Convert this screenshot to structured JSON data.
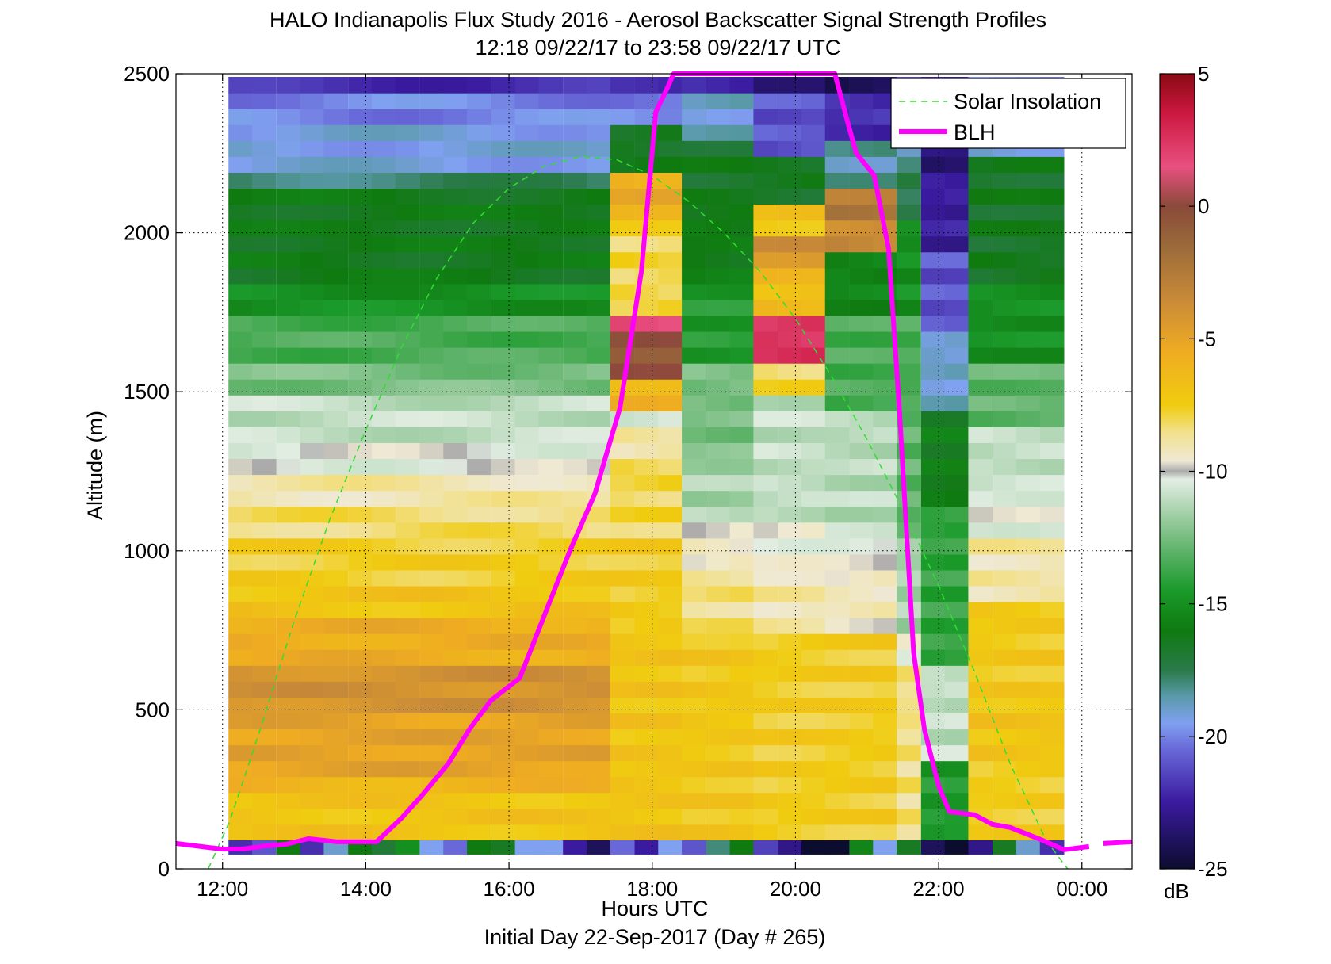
{
  "chart_data": {
    "type": "heatmap",
    "title": "HALO Indianapolis Flux Study 2016 - Aerosol Backscatter Signal Strength Profiles",
    "subtitle": "12:18 09/22/17 to 23:58 09/22/17  UTC",
    "xlabel": "Hours UTC",
    "xlabel2": "Initial Day 22-Sep-2017 (Day # 265)",
    "ylabel": "Altitude (m)",
    "colorbar_label": "dB",
    "xlim": [
      11.35,
      24.7
    ],
    "ylim": [
      0,
      2500
    ],
    "clim": [
      -25,
      5
    ],
    "grid": true,
    "grid_style": "dotted",
    "legend_position": "top-right",
    "x_ticks": [
      {
        "value": 12,
        "label": "12:00"
      },
      {
        "value": 14,
        "label": "14:00"
      },
      {
        "value": 16,
        "label": "16:00"
      },
      {
        "value": 18,
        "label": "18:00"
      },
      {
        "value": 20,
        "label": "20:00"
      },
      {
        "value": 22,
        "label": "22:00"
      },
      {
        "value": 24,
        "label": "00:00"
      }
    ],
    "y_ticks": [
      {
        "value": 0,
        "label": "0"
      },
      {
        "value": 500,
        "label": "500"
      },
      {
        "value": 1000,
        "label": "1000"
      },
      {
        "value": 1500,
        "label": "1500"
      },
      {
        "value": 2000,
        "label": "2000"
      },
      {
        "value": 2500,
        "label": "2500"
      }
    ],
    "colorbar_ticks": [
      {
        "value": 5,
        "label": "5"
      },
      {
        "value": 0,
        "label": "0"
      },
      {
        "value": -5,
        "label": "-5"
      },
      {
        "value": -10,
        "label": "-10"
      },
      {
        "value": -15,
        "label": "-15"
      },
      {
        "value": -20,
        "label": "-20"
      },
      {
        "value": -25,
        "label": "-25"
      }
    ],
    "colormap": [
      {
        "v": -25,
        "c": "#0c0c2e"
      },
      {
        "v": -22.5,
        "c": "#3a1a9e"
      },
      {
        "v": -20.5,
        "c": "#6868d8"
      },
      {
        "v": -19.5,
        "c": "#80a0f0"
      },
      {
        "v": -18.5,
        "c": "#5a9aaa"
      },
      {
        "v": -17.5,
        "c": "#2a7a4a"
      },
      {
        "v": -16,
        "c": "#0f7a0f"
      },
      {
        "v": -14.5,
        "c": "#1a9a2a"
      },
      {
        "v": -13,
        "c": "#5fb36a"
      },
      {
        "v": -11.5,
        "c": "#a8d2ac"
      },
      {
        "v": -10.3,
        "c": "#e4eee4"
      },
      {
        "v": -10,
        "c": "#aaaaaa"
      },
      {
        "v": -9.6,
        "c": "#efe9d4"
      },
      {
        "v": -8.5,
        "c": "#f2e08a"
      },
      {
        "v": -7.5,
        "c": "#f0cc10"
      },
      {
        "v": -5.5,
        "c": "#efac22"
      },
      {
        "v": -3.5,
        "c": "#c88a38"
      },
      {
        "v": -1.5,
        "c": "#9a6a3a"
      },
      {
        "v": 0,
        "c": "#8a4a3a"
      },
      {
        "v": 1.5,
        "c": "#e85080"
      },
      {
        "v": 3.5,
        "c": "#cc1840"
      },
      {
        "v": 5,
        "c": "#8a0a14"
      }
    ],
    "heatmap_x": [
      12.25,
      12.58,
      12.92,
      13.25,
      13.58,
      13.92,
      14.25,
      14.58,
      14.92,
      15.25,
      15.58,
      15.92,
      16.25,
      16.58,
      16.92,
      17.25,
      17.58,
      17.92,
      18.25,
      18.58,
      18.92,
      19.25,
      19.58,
      19.92,
      20.25,
      20.58,
      20.92,
      21.25,
      21.58,
      21.92,
      22.25,
      22.58,
      22.92,
      23.25,
      23.58
    ],
    "heatmap_x_step": 0.3333,
    "heatmap_y_min": 90,
    "heatmap_y_step": 50,
    "heatmap_segments": [
      {
        "x_from": 12.25,
        "x_to": 17.25,
        "bands": [
          [
            90,
            -7.0
          ],
          [
            200,
            -6.0
          ],
          [
            250,
            -5.0
          ],
          [
            450,
            -4.0
          ],
          [
            600,
            -5.6
          ],
          [
            750,
            -7.0
          ],
          [
            880,
            -7.6
          ],
          [
            1030,
            -8.3
          ],
          [
            1130,
            -9.0
          ],
          [
            1230,
            -10.2
          ],
          [
            1340,
            -11.0
          ],
          [
            1460,
            -12.5
          ],
          [
            1560,
            -13.5
          ],
          [
            1700,
            -15.0
          ],
          [
            1840,
            -16.2
          ],
          [
            2100,
            -17.8
          ],
          [
            2170,
            -19.3
          ],
          [
            2320,
            -20.0
          ],
          [
            2420,
            -22.0
          ]
        ]
      },
      {
        "x_from": 17.58,
        "x_to": 18.25,
        "bands": [
          [
            90,
            -7.0
          ],
          [
            700,
            -7.5
          ],
          [
            1000,
            -8.0
          ],
          [
            1250,
            -9.0
          ],
          [
            1350,
            -10.3
          ],
          [
            1420,
            -6.0
          ],
          [
            1500,
            -0.5
          ],
          [
            1650,
            2.0
          ],
          [
            1720,
            -8.0
          ],
          [
            2000,
            -5.5
          ],
          [
            2150,
            -16.5
          ],
          [
            2300,
            -20.0
          ],
          [
            2420,
            -22.5
          ]
        ]
      },
      {
        "x_from": 18.58,
        "x_to": 19.25,
        "bands": [
          [
            90,
            -7.2
          ],
          [
            700,
            -8.5
          ],
          [
            900,
            -9.5
          ],
          [
            1050,
            -11.5
          ],
          [
            1250,
            -12.5
          ],
          [
            1550,
            -14.5
          ],
          [
            1800,
            -16.0
          ],
          [
            2050,
            -16.5
          ],
          [
            2250,
            -19.0
          ],
          [
            2420,
            -22.0
          ]
        ]
      },
      {
        "x_from": 19.58,
        "x_to": 20.25,
        "bands": [
          [
            90,
            -7.5
          ],
          [
            700,
            -9.0
          ],
          [
            900,
            -10.0
          ],
          [
            1050,
            -11.0
          ],
          [
            1450,
            -8.0
          ],
          [
            1550,
            2.5
          ],
          [
            1700,
            -6.5
          ],
          [
            1850,
            -4.0
          ],
          [
            1950,
            -7.0
          ],
          [
            2050,
            -16.5
          ],
          [
            2200,
            -21.0
          ],
          [
            2400,
            -23.0
          ]
        ]
      },
      {
        "x_from": 20.58,
        "x_to": 21.25,
        "bands": [
          [
            90,
            -7.5
          ],
          [
            700,
            -9.3
          ],
          [
            900,
            -10.0
          ],
          [
            1000,
            -11.2
          ],
          [
            1400,
            -13.5
          ],
          [
            1700,
            -15.5
          ],
          [
            1900,
            -3.5
          ],
          [
            2000,
            -2.5
          ],
          [
            2100,
            -18.5
          ],
          [
            2250,
            -22.0
          ],
          [
            2400,
            -24.0
          ]
        ]
      },
      {
        "x_from": 21.58,
        "x_to": 21.58,
        "bands": [
          [
            90,
            -8.5
          ],
          [
            600,
            -10.0
          ],
          [
            700,
            -11.5
          ],
          [
            1000,
            -13.0
          ],
          [
            1400,
            -13.5
          ],
          [
            1700,
            -15.0
          ],
          [
            2000,
            -17.5
          ],
          [
            2200,
            -19.5
          ],
          [
            2420,
            -22.0
          ]
        ]
      },
      {
        "x_from": 21.92,
        "x_to": 22.25,
        "bands": [
          [
            90,
            -14.5
          ],
          [
            300,
            -11.0
          ],
          [
            600,
            -14.0
          ],
          [
            1100,
            -16.0
          ],
          [
            1400,
            -19.0
          ],
          [
            1650,
            -21.0
          ],
          [
            1900,
            -22.5
          ],
          [
            2150,
            -23.5
          ]
        ]
      },
      {
        "x_from": 22.58,
        "x_to": 23.58,
        "bands": [
          [
            90,
            -7.5
          ],
          [
            300,
            -7.0
          ],
          [
            500,
            -7.3
          ],
          [
            800,
            -9.0
          ],
          [
            1000,
            -10.2
          ],
          [
            1150,
            -11.0
          ],
          [
            1350,
            -13.0
          ],
          [
            1550,
            -15.0
          ],
          [
            1800,
            -16.5
          ],
          [
            2050,
            -16.5
          ],
          [
            2200,
            -19.0
          ],
          [
            2350,
            -20.5
          ]
        ]
      }
    ],
    "bottom_row_values": [
      -22,
      -21,
      -16,
      -22,
      -19,
      -16,
      -17,
      -15,
      -19.5,
      -20.5,
      -16,
      -16.5,
      -19.5,
      -19.5,
      -22.5,
      -24,
      -20.5,
      -22.5,
      -19.5,
      -21,
      -18,
      -16,
      -21.5,
      -23,
      -25,
      -25,
      -15.5,
      -19.5,
      -16.5,
      -24,
      -25,
      -23,
      -16.5,
      -19,
      -22
    ],
    "series": [
      {
        "name": "Solar Insolation",
        "style": "dashed",
        "color": "#33dd33",
        "x": [
          11.8,
          12.1,
          12.5,
          13.0,
          13.5,
          14.0,
          14.5,
          15.0,
          15.5,
          16.0,
          16.5,
          17.0,
          17.5,
          18.0,
          18.5,
          19.0,
          19.5,
          20.0,
          20.5,
          21.0,
          21.5,
          22.0,
          22.5,
          23.0,
          23.5,
          23.8
        ],
        "y": [
          0,
          150,
          420,
          780,
          1100,
          1380,
          1640,
          1860,
          2030,
          2140,
          2210,
          2240,
          2230,
          2180,
          2100,
          2000,
          1880,
          1730,
          1550,
          1350,
          1130,
          890,
          620,
          330,
          90,
          0
        ]
      },
      {
        "name": "BLH",
        "style": "solid",
        "color": "#ff00ff",
        "x": [
          11.35,
          11.7,
          12.0,
          12.3,
          12.6,
          12.9,
          13.2,
          13.6,
          13.9,
          14.15,
          14.5,
          14.8,
          15.15,
          15.45,
          15.75,
          16.15,
          16.5,
          16.85,
          17.2,
          17.55,
          17.85,
          18.05,
          18.2,
          18.3,
          18.4,
          18.45,
          20.45,
          20.55,
          20.75,
          20.85,
          21.1,
          21.3,
          21.45,
          21.65,
          21.8,
          22.0,
          22.15,
          22.5,
          22.75,
          23.0,
          23.45,
          23.75,
          24.1
        ],
        "y": [
          80,
          70,
          62,
          63,
          72,
          78,
          95,
          85,
          85,
          85,
          160,
          235,
          330,
          440,
          530,
          600,
          800,
          1000,
          1180,
          1450,
          1880,
          2380,
          2450,
          2500,
          2500,
          2500,
          2500,
          2500,
          2330,
          2250,
          2180,
          1950,
          1450,
          680,
          440,
          260,
          180,
          170,
          140,
          130,
          90,
          60,
          70
        ]
      }
    ],
    "blh_tail": {
      "x": [
        24.3,
        24.7
      ],
      "y": [
        80,
        85
      ]
    }
  }
}
